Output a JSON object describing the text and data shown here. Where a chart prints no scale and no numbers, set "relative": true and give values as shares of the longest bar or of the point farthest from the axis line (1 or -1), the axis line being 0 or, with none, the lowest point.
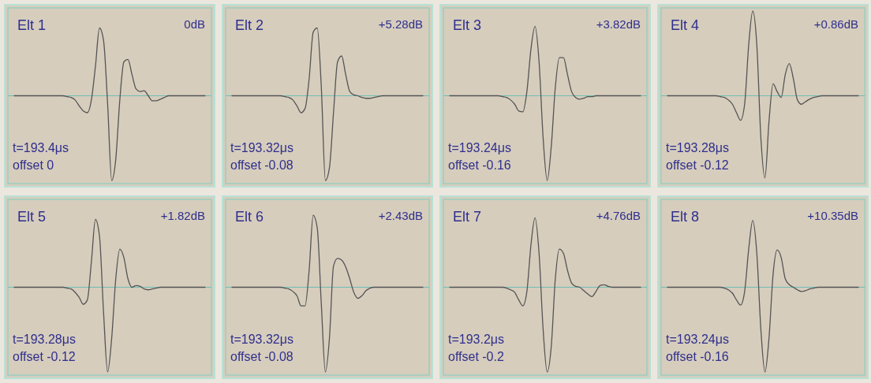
{
  "chart_data": [
    {
      "type": "line",
      "title": "Elt 1",
      "relative": true,
      "ref_lines": [
        {
          "axis": "y",
          "value": 0,
          "color": "#6fbfb4"
        }
      ],
      "annotations": [
        "0dB",
        "t=193.4μs",
        "offset 0"
      ],
      "categories": [
        null,
        null,
        null,
        null,
        null,
        null,
        null,
        null,
        null,
        null,
        null,
        null,
        null,
        null,
        null,
        null,
        null,
        null,
        null,
        null,
        null,
        null,
        null,
        null,
        null,
        null,
        null,
        null,
        null,
        null,
        null,
        null,
        null,
        null,
        null,
        null,
        null,
        null,
        null,
        null,
        null,
        null,
        null,
        null,
        null,
        null,
        null,
        null
      ],
      "series": [
        {
          "color": "#555555",
          "values": [
            0,
            0,
            0,
            0,
            0,
            0,
            0,
            0,
            0,
            0,
            0,
            0,
            0,
            -0.01,
            -0.02,
            -0.05,
            -0.12,
            -0.18,
            -0.2,
            -0.05,
            0.35,
            0.8,
            0.65,
            -0.1,
            -1,
            -0.75,
            -0.05,
            0.4,
            0.43,
            0.25,
            0.08,
            0.05,
            0.06,
            0,
            -0.06,
            -0.06,
            -0.04,
            -0.02,
            0,
            0,
            0,
            0,
            0,
            0,
            0,
            0,
            0,
            0
          ]
        }
      ]
    },
    {
      "type": "line",
      "title": "Elt 2",
      "relative": true,
      "ref_lines": [
        {
          "axis": "y",
          "value": 0,
          "color": "#6fbfb4"
        }
      ],
      "annotations": [
        "+5.28dB",
        "t=193.32μs",
        "offset -0.08"
      ],
      "categories": [
        null,
        null,
        null,
        null,
        null,
        null,
        null,
        null,
        null,
        null,
        null,
        null,
        null,
        null,
        null,
        null,
        null,
        null,
        null,
        null,
        null,
        null,
        null,
        null,
        null,
        null,
        null,
        null,
        null,
        null,
        null,
        null,
        null,
        null,
        null,
        null,
        null,
        null,
        null,
        null,
        null,
        null,
        null,
        null,
        null,
        null,
        null,
        null
      ],
      "series": [
        {
          "color": "#555555",
          "values": [
            0,
            0,
            0,
            0,
            0,
            0,
            0,
            0,
            0,
            0,
            0,
            0,
            0,
            -0.01,
            -0.02,
            -0.05,
            -0.12,
            -0.2,
            -0.15,
            0.2,
            0.75,
            0.8,
            0.1,
            -1,
            -0.85,
            -0.2,
            0.4,
            0.47,
            0.25,
            0.05,
            0.01,
            0,
            -0.02,
            -0.03,
            -0.03,
            -0.02,
            -0.01,
            0,
            0,
            0,
            0,
            0,
            0,
            0,
            0,
            0,
            0,
            0
          ]
        }
      ]
    },
    {
      "type": "line",
      "title": "Elt 3",
      "relative": true,
      "ref_lines": [
        {
          "axis": "y",
          "value": 0,
          "color": "#6fbfb4"
        }
      ],
      "annotations": [
        "+3.82dB",
        "t=193.24μs",
        "offset -0.16"
      ],
      "categories": [
        null,
        null,
        null,
        null,
        null,
        null,
        null,
        null,
        null,
        null,
        null,
        null,
        null,
        null,
        null,
        null,
        null,
        null,
        null,
        null,
        null,
        null,
        null,
        null,
        null,
        null,
        null,
        null,
        null,
        null,
        null,
        null,
        null,
        null,
        null,
        null,
        null,
        null,
        null,
        null,
        null,
        null,
        null,
        null,
        null,
        null,
        null,
        null
      ],
      "series": [
        {
          "color": "#555555",
          "values": [
            0,
            0,
            0,
            0,
            0,
            0,
            0,
            0,
            0,
            0,
            0,
            0,
            0,
            -0.01,
            -0.02,
            -0.05,
            -0.1,
            -0.18,
            -0.19,
            0.05,
            0.55,
            0.82,
            0.4,
            -0.5,
            -1,
            -0.6,
            0.1,
            0.45,
            0.45,
            0.25,
            0.05,
            -0.02,
            -0.04,
            -0.03,
            -0.01,
            -0.01,
            0,
            0,
            0,
            0,
            0,
            0,
            0,
            0,
            0,
            0,
            0,
            0
          ]
        }
      ]
    },
    {
      "type": "line",
      "title": "Elt 4",
      "relative": true,
      "ref_lines": [
        {
          "axis": "y",
          "value": 0,
          "color": "#6fbfb4"
        }
      ],
      "annotations": [
        "+0.86dB",
        "t=193.28μs",
        "offset -0.12"
      ],
      "categories": [
        null,
        null,
        null,
        null,
        null,
        null,
        null,
        null,
        null,
        null,
        null,
        null,
        null,
        null,
        null,
        null,
        null,
        null,
        null,
        null,
        null,
        null,
        null,
        null,
        null,
        null,
        null,
        null,
        null,
        null,
        null,
        null,
        null,
        null,
        null,
        null,
        null,
        null,
        null,
        null,
        null,
        null,
        null,
        null,
        null,
        null,
        null,
        null
      ],
      "series": [
        {
          "color": "#555555",
          "values": [
            0,
            0,
            0,
            0,
            0,
            0,
            0,
            0,
            0,
            0,
            0,
            0,
            0,
            -0.01,
            -0.02,
            -0.05,
            -0.1,
            -0.2,
            -0.29,
            -0.1,
            0.6,
            1,
            0.6,
            -0.5,
            -0.97,
            -0.3,
            0.14,
            0.05,
            -0.02,
            0.25,
            0.38,
            0.2,
            -0.05,
            -0.1,
            -0.07,
            -0.04,
            -0.02,
            -0.01,
            0,
            0,
            0,
            0,
            0,
            0,
            0,
            0,
            0,
            0
          ]
        }
      ]
    },
    {
      "type": "line",
      "title": "Elt 5",
      "relative": true,
      "ref_lines": [
        {
          "axis": "y",
          "value": 0,
          "color": "#6fbfb4"
        }
      ],
      "annotations": [
        "+1.82dB",
        "t=193.28μs",
        "offset -0.12"
      ],
      "categories": [
        null,
        null,
        null,
        null,
        null,
        null,
        null,
        null,
        null,
        null,
        null,
        null,
        null,
        null,
        null,
        null,
        null,
        null,
        null,
        null,
        null,
        null,
        null,
        null,
        null,
        null,
        null,
        null,
        null,
        null,
        null,
        null,
        null,
        null,
        null,
        null,
        null,
        null,
        null,
        null,
        null,
        null,
        null,
        null,
        null,
        null,
        null,
        null
      ],
      "series": [
        {
          "color": "#555555",
          "values": [
            0,
            0,
            0,
            0,
            0,
            0,
            0,
            0,
            0,
            0,
            0,
            0,
            0,
            -0.01,
            -0.02,
            -0.06,
            -0.12,
            -0.2,
            -0.15,
            0.3,
            0.8,
            0.6,
            -0.3,
            -1,
            -0.6,
            0.1,
            0.45,
            0.35,
            0.1,
            0,
            0.02,
            0.01,
            -0.02,
            -0.03,
            -0.02,
            -0.01,
            0,
            0,
            0,
            0,
            0,
            0,
            0,
            0,
            0,
            0,
            0,
            0
          ]
        }
      ]
    },
    {
      "type": "line",
      "title": "Elt 6",
      "relative": true,
      "ref_lines": [
        {
          "axis": "y",
          "value": 0,
          "color": "#6fbfb4"
        }
      ],
      "annotations": [
        "+2.43dB",
        "t=193.32μs",
        "offset -0.08"
      ],
      "categories": [
        null,
        null,
        null,
        null,
        null,
        null,
        null,
        null,
        null,
        null,
        null,
        null,
        null,
        null,
        null,
        null,
        null,
        null,
        null,
        null,
        null,
        null,
        null,
        null,
        null,
        null,
        null,
        null,
        null,
        null,
        null,
        null,
        null,
        null,
        null,
        null,
        null,
        null,
        null,
        null,
        null,
        null,
        null,
        null,
        null,
        null,
        null,
        null
      ],
      "series": [
        {
          "color": "#555555",
          "values": [
            0,
            0,
            0,
            0,
            0,
            0,
            0,
            0,
            0,
            0,
            0,
            0,
            0,
            -0.01,
            -0.02,
            -0.05,
            -0.1,
            -0.22,
            -0.22,
            0.2,
            0.85,
            0.7,
            -0.2,
            -1,
            -0.6,
            0.25,
            0.34,
            0.32,
            0.24,
            0.1,
            -0.06,
            -0.13,
            -0.1,
            -0.04,
            -0.01,
            0,
            0,
            0,
            0,
            0,
            0,
            0,
            0,
            0,
            0,
            0,
            0,
            0
          ]
        }
      ]
    },
    {
      "type": "line",
      "title": "Elt 7",
      "relative": true,
      "ref_lines": [
        {
          "axis": "y",
          "value": 0,
          "color": "#6fbfb4"
        }
      ],
      "annotations": [
        "+4.76dB",
        "t=193.2μs",
        "offset -0.2"
      ],
      "categories": [
        null,
        null,
        null,
        null,
        null,
        null,
        null,
        null,
        null,
        null,
        null,
        null,
        null,
        null,
        null,
        null,
        null,
        null,
        null,
        null,
        null,
        null,
        null,
        null,
        null,
        null,
        null,
        null,
        null,
        null,
        null,
        null,
        null,
        null,
        null,
        null,
        null,
        null,
        null,
        null,
        null,
        null,
        null,
        null,
        null,
        null,
        null,
        null
      ],
      "series": [
        {
          "color": "#555555",
          "values": [
            0,
            0,
            0,
            0,
            0,
            0,
            0,
            0,
            0,
            0,
            0,
            0,
            0,
            0,
            -0.01,
            -0.03,
            -0.06,
            -0.15,
            -0.22,
            -0.05,
            0.5,
            0.82,
            0.4,
            -0.5,
            -1,
            -0.7,
            0.1,
            0.45,
            0.4,
            0.2,
            0.05,
            0.01,
            0,
            -0.04,
            -0.08,
            -0.11,
            -0.05,
            0.02,
            0.03,
            0.01,
            0,
            0,
            0,
            0,
            0,
            0,
            0,
            0
          ]
        }
      ]
    },
    {
      "type": "line",
      "title": "Elt 8",
      "relative": true,
      "ref_lines": [
        {
          "axis": "y",
          "value": 0,
          "color": "#6fbfb4"
        }
      ],
      "annotations": [
        "+10.35dB",
        "t=193.24μs",
        "offset -0.16"
      ],
      "categories": [
        null,
        null,
        null,
        null,
        null,
        null,
        null,
        null,
        null,
        null,
        null,
        null,
        null,
        null,
        null,
        null,
        null,
        null,
        null,
        null,
        null,
        null,
        null,
        null,
        null,
        null,
        null,
        null,
        null,
        null,
        null,
        null,
        null,
        null,
        null,
        null,
        null,
        null,
        null,
        null,
        null,
        null,
        null,
        null,
        null,
        null,
        null,
        null
      ],
      "series": [
        {
          "color": "#555555",
          "values": [
            0,
            0,
            0,
            0,
            0,
            0,
            0,
            0,
            0,
            0,
            0,
            0,
            0,
            0,
            -0.01,
            -0.03,
            -0.07,
            -0.15,
            -0.21,
            -0.05,
            0.45,
            0.79,
            0.4,
            -0.5,
            -1,
            -0.6,
            0.15,
            0.44,
            0.35,
            0.1,
            0.03,
            0,
            -0.03,
            -0.05,
            -0.04,
            -0.02,
            -0.01,
            0,
            0,
            0,
            0,
            0,
            0,
            0,
            0,
            0,
            0,
            0
          ]
        }
      ]
    }
  ]
}
